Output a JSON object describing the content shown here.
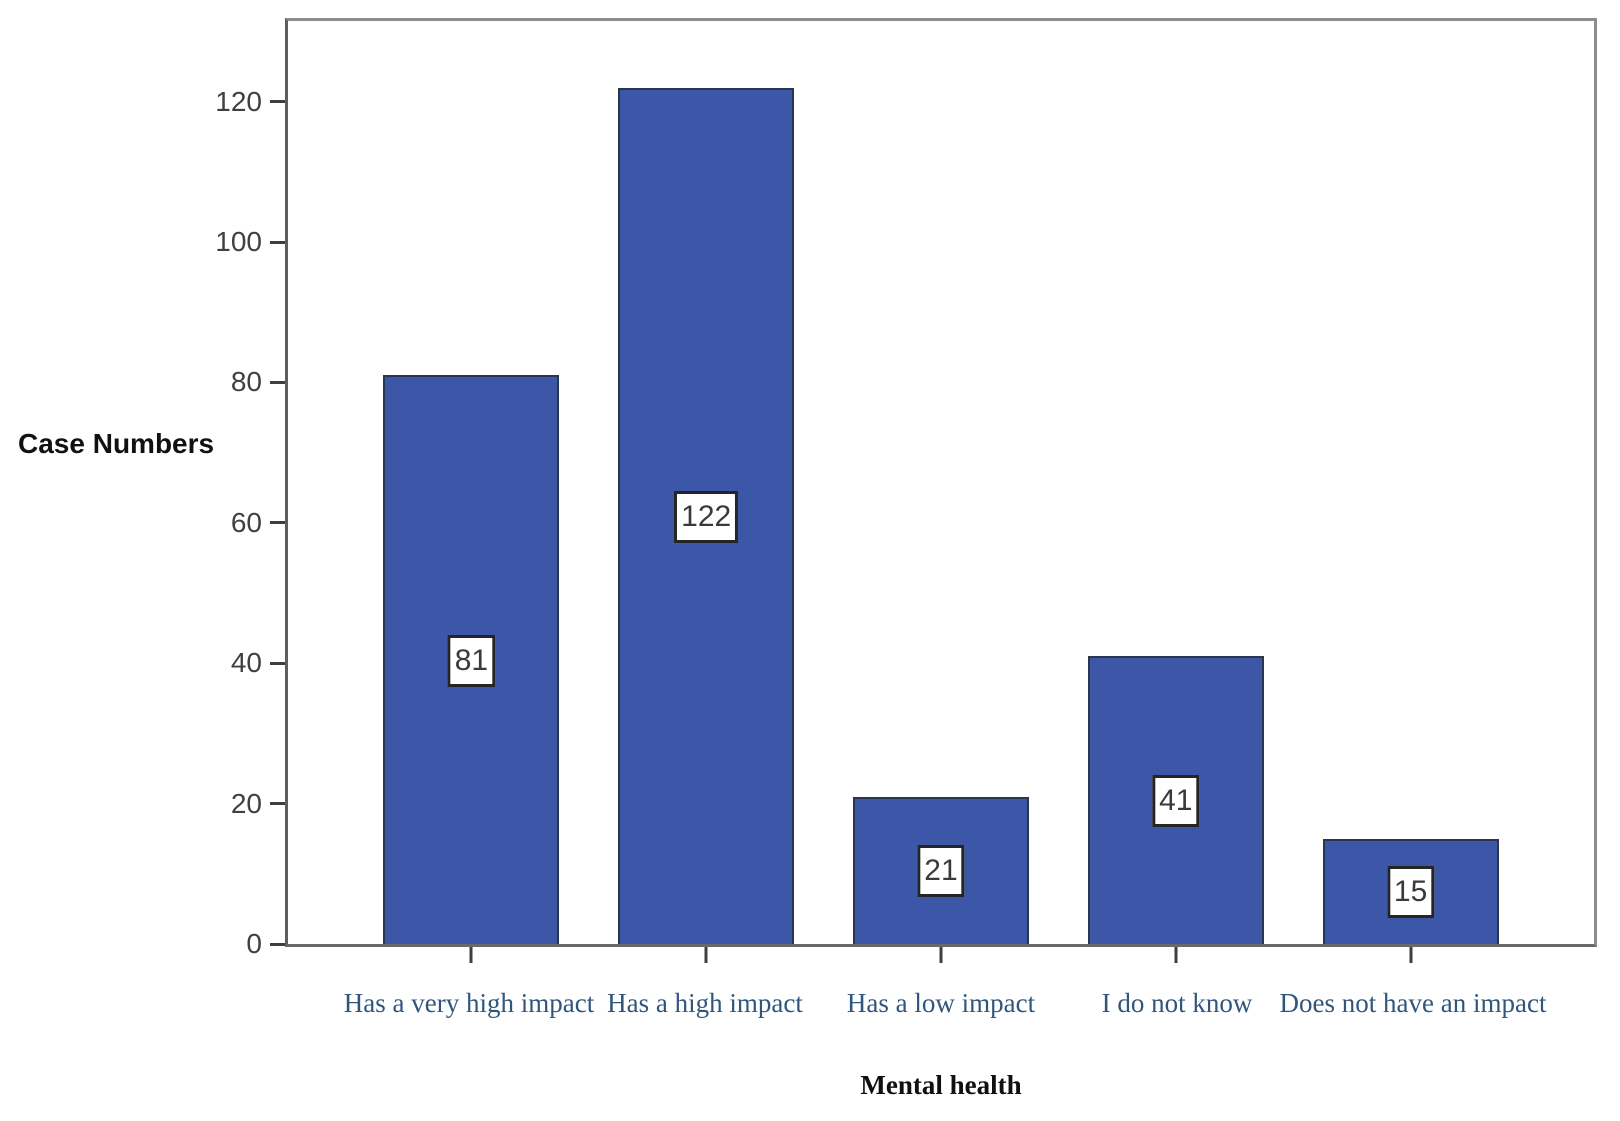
{
  "chart_data": {
    "type": "bar",
    "title": "",
    "categories": [
      "Has a very high impact",
      "Has a high impact",
      "Has a low impact",
      "I do not know",
      "Does not have an impact"
    ],
    "values": [
      81,
      122,
      21,
      41,
      15
    ],
    "value_labels": [
      "81",
      "122",
      "21",
      "41",
      "15"
    ],
    "xlabel": "Mental health",
    "ylabel": "Case Numbers",
    "ylim": [
      0,
      131.5
    ],
    "yticks": [
      0,
      20,
      40,
      60,
      80,
      100,
      120
    ],
    "grid": false,
    "legend": "none",
    "colors": {
      "bar_fill": "#3c56a8",
      "bar_border": "#2b3550",
      "value_box_bg": "#ffffff",
      "value_box_border": "#252525",
      "value_text": "#3a3a3a",
      "axis_frame": "#8c8c8c",
      "tick": "#3f3f3f",
      "tick_label": "#404040",
      "category_label": "#31567d",
      "axis_title": "#111111"
    }
  }
}
